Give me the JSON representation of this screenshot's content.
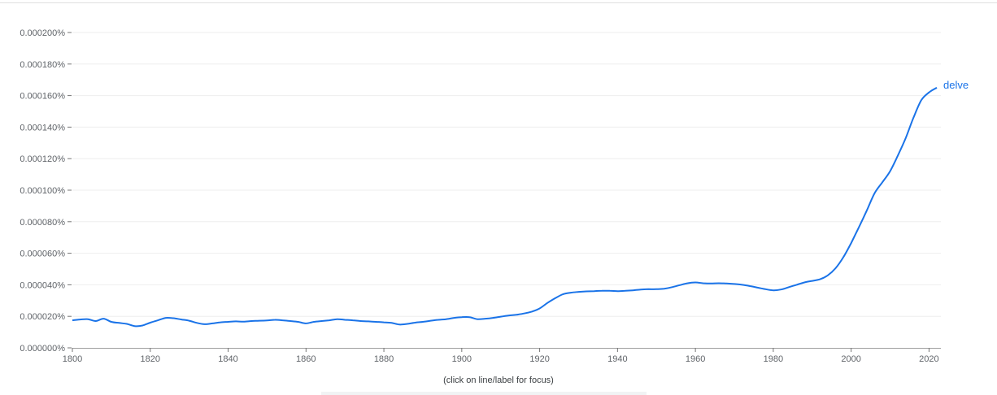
{
  "footer": {
    "hint": "(click on line/label for focus)"
  },
  "colors": {
    "series": "#1a73e8",
    "grid": "#eeeeee",
    "axis": "#757575",
    "tick_text": "#5f6368"
  },
  "chart_data": {
    "type": "line",
    "title": "",
    "xlabel": "",
    "ylabel": "",
    "xlim": [
      1800,
      2022
    ],
    "ylim": [
      0,
      0.0002
    ],
    "grid": true,
    "legend": "inline-end-of-line",
    "x_ticks": [
      1800,
      1820,
      1840,
      1860,
      1880,
      1900,
      1920,
      1940,
      1960,
      1980,
      2000,
      2020
    ],
    "y_ticks": [
      {
        "value": 0.0,
        "label": "0.000000%"
      },
      {
        "value": 2e-05,
        "label": "0.000020%"
      },
      {
        "value": 4e-05,
        "label": "0.000040%"
      },
      {
        "value": 6e-05,
        "label": "0.000060%"
      },
      {
        "value": 8e-05,
        "label": "0.000080%"
      },
      {
        "value": 0.0001,
        "label": "0.000100%"
      },
      {
        "value": 0.00012,
        "label": "0.000120%"
      },
      {
        "value": 0.00014,
        "label": "0.000140%"
      },
      {
        "value": 0.00016,
        "label": "0.000160%"
      },
      {
        "value": 0.00018,
        "label": "0.000180%"
      },
      {
        "value": 0.0002,
        "label": "0.000200%"
      }
    ],
    "series": [
      {
        "name": "delve",
        "x": [
          1800,
          1802,
          1804,
          1806,
          1808,
          1810,
          1812,
          1814,
          1816,
          1818,
          1820,
          1822,
          1824,
          1826,
          1828,
          1830,
          1832,
          1834,
          1836,
          1838,
          1840,
          1842,
          1844,
          1846,
          1848,
          1850,
          1852,
          1854,
          1856,
          1858,
          1860,
          1862,
          1864,
          1866,
          1868,
          1870,
          1872,
          1874,
          1876,
          1878,
          1880,
          1882,
          1884,
          1886,
          1888,
          1890,
          1892,
          1894,
          1896,
          1898,
          1900,
          1902,
          1904,
          1906,
          1908,
          1910,
          1912,
          1914,
          1916,
          1918,
          1920,
          1922,
          1924,
          1926,
          1928,
          1930,
          1932,
          1934,
          1936,
          1938,
          1940,
          1942,
          1944,
          1946,
          1948,
          1950,
          1952,
          1954,
          1956,
          1958,
          1960,
          1962,
          1964,
          1966,
          1968,
          1970,
          1972,
          1974,
          1976,
          1978,
          1980,
          1982,
          1984,
          1986,
          1988,
          1990,
          1992,
          1994,
          1996,
          1998,
          2000,
          2002,
          2004,
          2006,
          2008,
          2010,
          2012,
          2014,
          2016,
          2018,
          2020,
          2022
        ],
        "values": [
          1.75e-05,
          1.8e-05,
          1.82e-05,
          1.7e-05,
          1.85e-05,
          1.65e-05,
          1.58e-05,
          1.52e-05,
          1.38e-05,
          1.42e-05,
          1.6e-05,
          1.75e-05,
          1.9e-05,
          1.88e-05,
          1.8e-05,
          1.72e-05,
          1.58e-05,
          1.5e-05,
          1.55e-05,
          1.62e-05,
          1.65e-05,
          1.68e-05,
          1.66e-05,
          1.7e-05,
          1.72e-05,
          1.74e-05,
          1.78e-05,
          1.75e-05,
          1.7e-05,
          1.65e-05,
          1.55e-05,
          1.65e-05,
          1.7e-05,
          1.75e-05,
          1.82e-05,
          1.78e-05,
          1.75e-05,
          1.7e-05,
          1.68e-05,
          1.65e-05,
          1.62e-05,
          1.58e-05,
          1.48e-05,
          1.52e-05,
          1.6e-05,
          1.65e-05,
          1.72e-05,
          1.78e-05,
          1.82e-05,
          1.9e-05,
          1.95e-05,
          1.95e-05,
          1.82e-05,
          1.85e-05,
          1.9e-05,
          1.98e-05,
          2.05e-05,
          2.1e-05,
          2.18e-05,
          2.3e-05,
          2.5e-05,
          2.85e-05,
          3.15e-05,
          3.4e-05,
          3.5e-05,
          3.55e-05,
          3.58e-05,
          3.6e-05,
          3.62e-05,
          3.62e-05,
          3.6e-05,
          3.62e-05,
          3.65e-05,
          3.7e-05,
          3.72e-05,
          3.72e-05,
          3.75e-05,
          3.85e-05,
          3.98e-05,
          4.1e-05,
          4.15e-05,
          4.1e-05,
          4.08e-05,
          4.1e-05,
          4.08e-05,
          4.05e-05,
          4e-05,
          3.92e-05,
          3.82e-05,
          3.72e-05,
          3.65e-05,
          3.7e-05,
          3.85e-05,
          4e-05,
          4.15e-05,
          4.25e-05,
          4.35e-05,
          4.6e-05,
          5.05e-05,
          5.75e-05,
          6.65e-05,
          7.65e-05,
          8.7e-05,
          9.8e-05,
          0.000105,
          0.000112,
          0.000122,
          0.000133,
          0.000146,
          0.000157,
          0.000162,
          0.000165
        ]
      }
    ]
  }
}
